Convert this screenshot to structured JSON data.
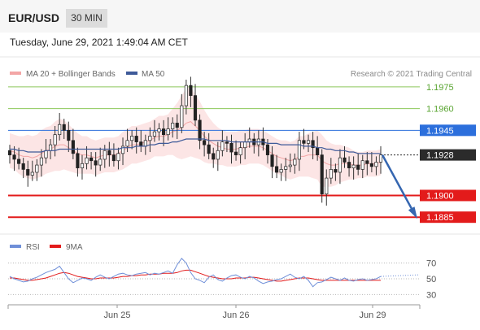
{
  "header": {
    "symbol": "EUR/USD",
    "timeframe": "30 MIN",
    "datetime": "Tuesday, June 29, 2021 1:49:04 AM CET"
  },
  "legend": {
    "ma20_label": "MA 20 + Bollinger Bands",
    "ma50_label": "MA 50",
    "source": "Research © 2021 Trading Central",
    "rsi_label": "RSI",
    "ma9_label": "9MA"
  },
  "colors": {
    "resistance_green": "#8dc85a",
    "pivot_blue": "#2c6fdc",
    "support_red": "#e31b1b",
    "last_price_dark": "#2b2b2b",
    "ma20_band": "#f3a6a6",
    "ma50": "#3e5a99",
    "arrow": "#3566b0",
    "rsi": "#6f8fd8",
    "rsi_ma": "#e31b1b"
  },
  "chart_data": [
    {
      "type": "candlestick",
      "symbol": "EUR/USD",
      "timeframe": "30 MIN",
      "ylim": [
        1.1875,
        1.198
      ],
      "x_ticks": [
        "Jun 25",
        "Jun 26",
        "Jun 29"
      ],
      "levels": [
        {
          "label": "1.1975",
          "value": 1.1975,
          "kind": "resistance"
        },
        {
          "label": "1.1960",
          "value": 1.196,
          "kind": "resistance"
        },
        {
          "label": "1.1945",
          "value": 1.1945,
          "kind": "pivot"
        },
        {
          "label": "1.1928",
          "value": 1.1928,
          "kind": "last"
        },
        {
          "label": "1.1900",
          "value": 1.19,
          "kind": "support"
        },
        {
          "label": "1.1885",
          "value": 1.1885,
          "kind": "support"
        }
      ],
      "closes": [
        1.1928,
        1.1925,
        1.1922,
        1.1918,
        1.1914,
        1.1916,
        1.1921,
        1.1926,
        1.1931,
        1.1935,
        1.1942,
        1.1949,
        1.1945,
        1.1938,
        1.1929,
        1.1919,
        1.1922,
        1.1926,
        1.1924,
        1.1921,
        1.1925,
        1.1931,
        1.1928,
        1.1924,
        1.1929,
        1.1934,
        1.1938,
        1.1941,
        1.1937,
        1.1934,
        1.1938,
        1.1941,
        1.1944,
        1.1946,
        1.1942,
        1.1946,
        1.195,
        1.1947,
        1.1962,
        1.1976,
        1.1969,
        1.1952,
        1.1938,
        1.1935,
        1.1929,
        1.1925,
        1.1931,
        1.1937,
        1.1936,
        1.193,
        1.1928,
        1.1933,
        1.1937,
        1.1939,
        1.1935,
        1.1939,
        1.1935,
        1.1928,
        1.192,
        1.1916,
        1.1918,
        1.192,
        1.1921,
        1.1925,
        1.1938,
        1.1936,
        1.1938,
        1.1933,
        1.1928,
        1.1901,
        1.1912,
        1.1918,
        1.1916,
        1.1926,
        1.1923,
        1.1919,
        1.1921,
        1.1918,
        1.1924,
        1.1922,
        1.192,
        1.1923,
        1.1928
      ],
      "ma20": [
        1.1931,
        1.193,
        1.1928,
        1.1927,
        1.1927,
        1.1926,
        1.1927,
        1.1929,
        1.1931,
        1.1932,
        1.1934,
        1.1935,
        1.1935,
        1.1933,
        1.1931,
        1.1929,
        1.1928,
        1.1928,
        1.1927,
        1.1926,
        1.1927,
        1.1928,
        1.1928,
        1.1928,
        1.1929,
        1.1931,
        1.1933,
        1.1935,
        1.1935,
        1.1936,
        1.1937,
        1.1938,
        1.194,
        1.1941,
        1.1941,
        1.1942,
        1.1944,
        1.1945,
        1.1947,
        1.195,
        1.1951,
        1.1948,
        1.1945,
        1.1941,
        1.1938,
        1.1936,
        1.1934,
        1.1933,
        1.1932,
        1.1932,
        1.1932,
        1.1933,
        1.1933,
        1.1934,
        1.1934,
        1.1934,
        1.1933,
        1.1931,
        1.1929,
        1.1927,
        1.1926,
        1.1925,
        1.1924,
        1.1925,
        1.1927,
        1.1927,
        1.1928,
        1.1928,
        1.1928,
        1.1924,
        1.1922,
        1.1921,
        1.1921,
        1.1922,
        1.1922,
        1.1922,
        1.1921,
        1.1921,
        1.1921,
        1.1922,
        1.1922,
        1.1922,
        1.1923
      ],
      "band_width": [
        0.0012,
        0.0012,
        0.0013,
        0.0014,
        0.0015,
        0.0015,
        0.0015,
        0.0016,
        0.0016,
        0.0016,
        0.0017,
        0.0018,
        0.0017,
        0.0016,
        0.0015,
        0.0014,
        0.0013,
        0.0013,
        0.0012,
        0.0012,
        0.0012,
        0.0012,
        0.0012,
        0.0012,
        0.0012,
        0.0013,
        0.0013,
        0.0013,
        0.0013,
        0.0013,
        0.0013,
        0.0013,
        0.0013,
        0.0014,
        0.0014,
        0.0014,
        0.0016,
        0.0019,
        0.0022,
        0.0024,
        0.0024,
        0.0022,
        0.002,
        0.0018,
        0.0016,
        0.0014,
        0.0013,
        0.0012,
        0.0012,
        0.0012,
        0.0012,
        0.0012,
        0.0012,
        0.0012,
        0.0012,
        0.0012,
        0.0012,
        0.0012,
        0.0012,
        0.0012,
        0.0012,
        0.0013,
        0.0013,
        0.0013,
        0.0014,
        0.0014,
        0.0015,
        0.0016,
        0.0017,
        0.0018,
        0.0016,
        0.0015,
        0.0014,
        0.0013,
        0.0012,
        0.0011,
        0.001,
        0.0009,
        0.0009,
        0.0009,
        0.0009,
        0.0009,
        0.0009
      ],
      "ma50": [
        1.1932,
        1.1932,
        1.1931,
        1.1931,
        1.193,
        1.193,
        1.193,
        1.193,
        1.1931,
        1.1931,
        1.1931,
        1.1932,
        1.1932,
        1.1932,
        1.1932,
        1.1932,
        1.1932,
        1.1932,
        1.1932,
        1.1932,
        1.1932,
        1.1932,
        1.1932,
        1.1932,
        1.1932,
        1.1933,
        1.1933,
        1.1933,
        1.1934,
        1.1934,
        1.1934,
        1.1935,
        1.1935,
        1.1936,
        1.1936,
        1.1936,
        1.1937,
        1.1937,
        1.1938,
        1.1939,
        1.1939,
        1.1939,
        1.1939,
        1.1939,
        1.1938,
        1.1938,
        1.1938,
        1.1938,
        1.1938,
        1.1937,
        1.1937,
        1.1937,
        1.1937,
        1.1937,
        1.1937,
        1.1937,
        1.1937,
        1.1936,
        1.1936,
        1.1936,
        1.1935,
        1.1935,
        1.1935,
        1.1935,
        1.1935,
        1.1934,
        1.1934,
        1.1934,
        1.1933,
        1.1933,
        1.1932,
        1.1932,
        1.1931,
        1.1931,
        1.1931,
        1.193,
        1.193,
        1.1929,
        1.1929,
        1.1929,
        1.1929,
        1.1929,
        1.1929
      ],
      "projection": {
        "from": 1.1928,
        "to": 1.1885
      }
    },
    {
      "type": "line",
      "series": [
        {
          "name": "RSI"
        },
        {
          "name": "9MA"
        }
      ],
      "ylim": [
        20,
        80
      ],
      "y_ticks": [
        70,
        50,
        30
      ],
      "rsi": [
        53,
        50,
        48,
        46,
        47,
        50,
        52,
        55,
        58,
        60,
        62,
        66,
        58,
        50,
        45,
        48,
        51,
        50,
        48,
        52,
        55,
        52,
        50,
        53,
        56,
        57,
        55,
        54,
        56,
        57,
        58,
        55,
        57,
        56,
        58,
        60,
        57,
        68,
        76,
        70,
        58,
        50,
        48,
        45,
        52,
        55,
        49,
        47,
        51,
        54,
        55,
        52,
        50,
        53,
        51,
        47,
        44,
        46,
        47,
        49,
        50,
        53,
        56,
        52,
        50,
        53,
        48,
        40,
        45,
        46,
        49,
        52,
        50,
        48,
        51,
        48,
        47,
        49,
        50,
        48,
        49,
        50,
        53
      ],
      "rsi_ma": [
        51,
        51,
        50,
        49,
        48,
        48,
        49,
        50,
        51,
        53,
        55,
        57,
        58,
        57,
        55,
        53,
        52,
        51,
        50,
        50,
        51,
        51,
        51,
        51,
        52,
        53,
        53,
        54,
        54,
        55,
        55,
        56,
        56,
        56,
        57,
        57,
        57,
        58,
        60,
        61,
        61,
        59,
        57,
        55,
        53,
        52,
        51,
        50,
        50,
        50,
        51,
        51,
        51,
        52,
        52,
        51,
        50,
        49,
        48,
        47,
        47,
        48,
        49,
        50,
        51,
        51,
        51,
        50,
        49,
        48,
        48,
        48,
        48,
        48,
        48,
        48,
        48,
        48,
        48,
        48,
        48,
        48,
        48
      ]
    }
  ]
}
